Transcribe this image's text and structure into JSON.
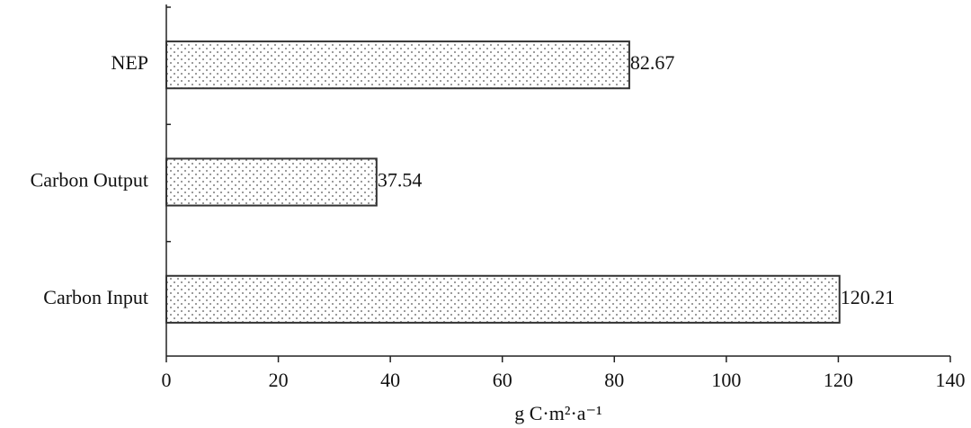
{
  "chart_data": {
    "type": "bar",
    "orientation": "horizontal",
    "categories": [
      "Carbon Input",
      "Carbon Output",
      "NEP"
    ],
    "values": [
      120.21,
      37.54,
      82.67
    ],
    "color": "#555555",
    "xlim": [
      0,
      140
    ],
    "xticks": [
      0,
      20,
      40,
      60,
      80,
      100,
      120,
      140
    ],
    "x_label": "g C·m²·a⁻¹"
  }
}
